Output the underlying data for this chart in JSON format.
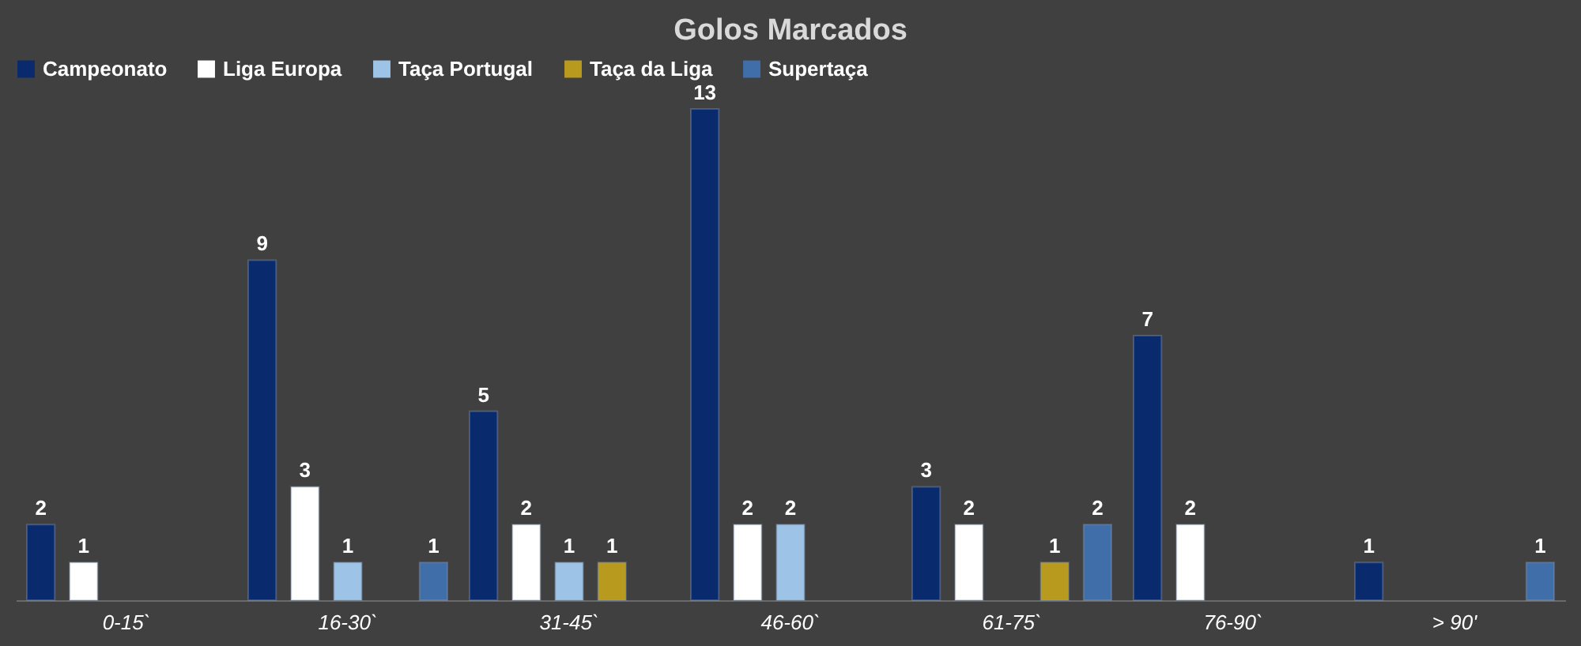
{
  "chart_data": {
    "type": "bar",
    "title": "Golos Marcados",
    "categories": [
      "0-15`",
      "16-30`",
      "31-45`",
      "46-60`",
      "61-75`",
      "76-90`",
      "> 90'"
    ],
    "series": [
      {
        "name": "Campeonato",
        "color": "#0a2a6e",
        "values": [
          2,
          9,
          5,
          13,
          3,
          7,
          1
        ]
      },
      {
        "name": "Liga Europa",
        "color": "#ffffff",
        "values": [
          1,
          3,
          2,
          2,
          2,
          2,
          null
        ]
      },
      {
        "name": "Taça Portugal",
        "color": "#9dc3e6",
        "values": [
          null,
          1,
          1,
          2,
          null,
          null,
          null
        ]
      },
      {
        "name": "Taça da Liga",
        "color": "#b89a1e",
        "values": [
          null,
          null,
          1,
          null,
          1,
          null,
          null
        ]
      },
      {
        "name": "Supertaça",
        "color": "#3f6ea8",
        "values": [
          null,
          1,
          null,
          null,
          2,
          null,
          1
        ]
      }
    ],
    "data_labels": true,
    "legend": "top",
    "grid": false
  }
}
